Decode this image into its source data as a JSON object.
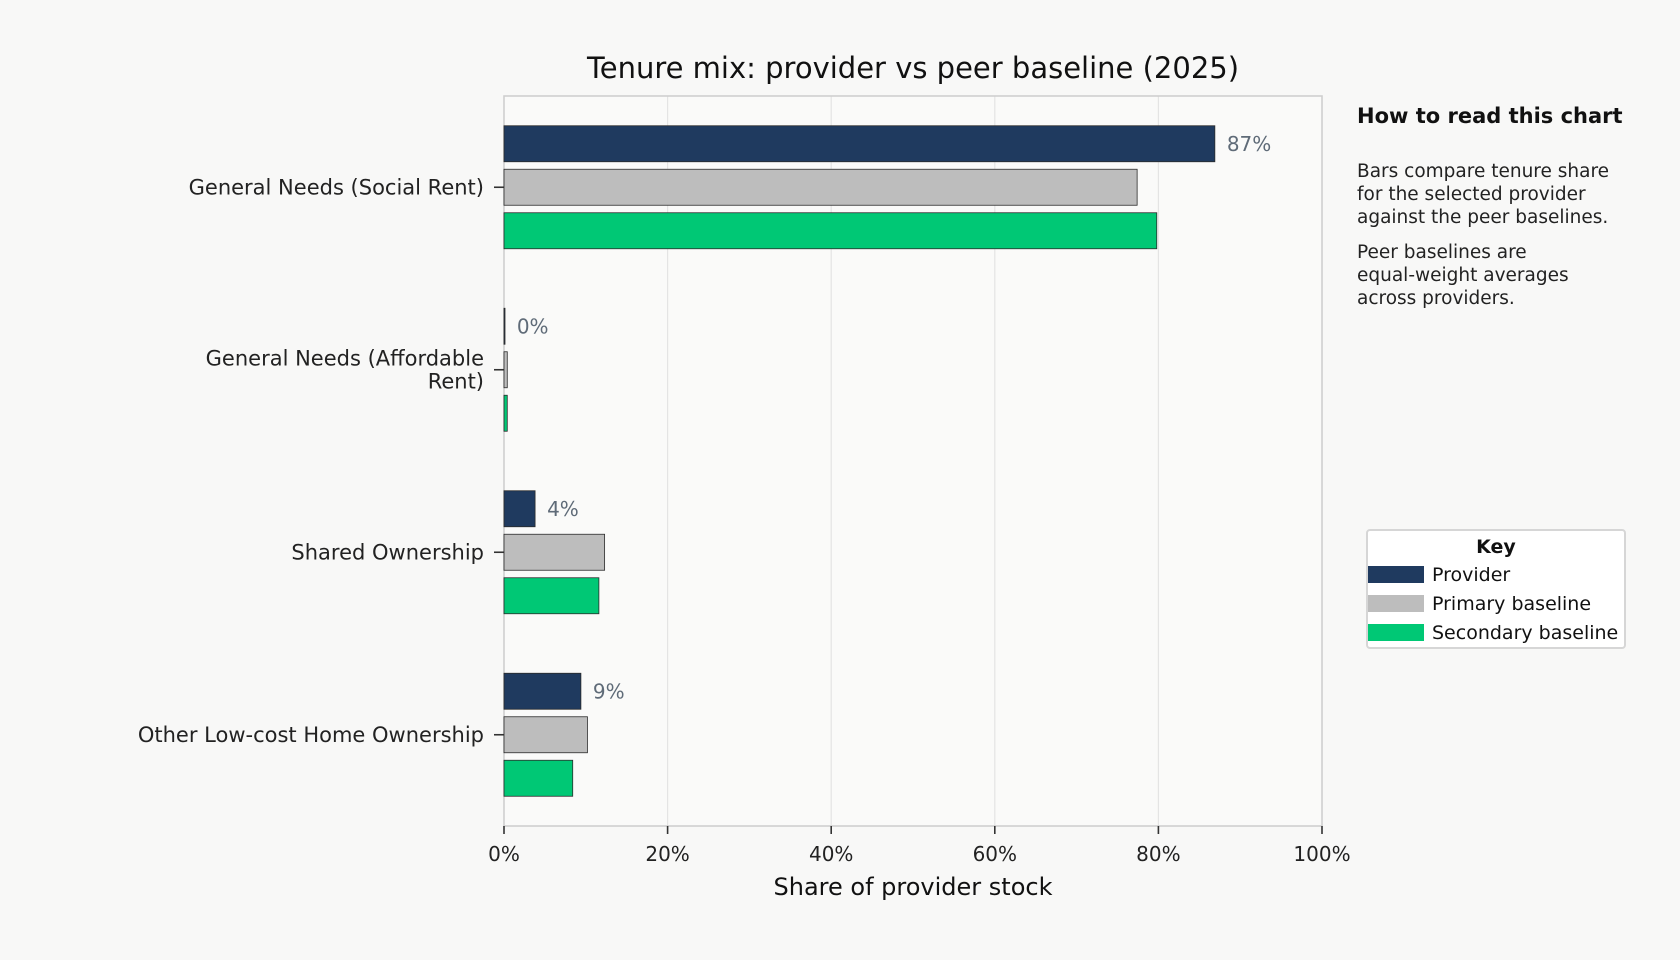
{
  "chart_data": {
    "type": "bar",
    "orientation": "horizontal",
    "title": "Tenure mix: provider vs peer baseline (2025)",
    "xlabel": "Share of provider stock",
    "ylabel": "",
    "xlim": [
      0,
      100
    ],
    "x_ticks": [
      0,
      20,
      40,
      60,
      80,
      100
    ],
    "x_tick_labels": [
      "0%",
      "20%",
      "40%",
      "60%",
      "80%",
      "100%"
    ],
    "grid": "vertical",
    "categories": [
      "General Needs (Social Rent)",
      "General Needs (Affordable Rent)",
      "Shared Ownership",
      "Other Low-cost Home Ownership"
    ],
    "category_label_lines": [
      [
        "General Needs (Social Rent)"
      ],
      [
        "General Needs (Affordable",
        "Rent)"
      ],
      [
        "Shared Ownership"
      ],
      [
        "Other Low-cost Home Ownership"
      ]
    ],
    "series": [
      {
        "name": "Provider",
        "color": "#1f3a5f",
        "values": [
          86.9,
          0.1,
          3.8,
          9.4
        ],
        "labels": [
          "87%",
          "0%",
          "4%",
          "9%"
        ]
      },
      {
        "name": "Primary baseline",
        "color": "#bdbdbd",
        "values": [
          77.4,
          0.4,
          12.3,
          10.2
        ]
      },
      {
        "name": "Secondary baseline",
        "color": "#00c875",
        "values": [
          79.8,
          0.4,
          11.6,
          8.4
        ]
      }
    ],
    "legend": {
      "title": "Key",
      "position": "right"
    }
  },
  "side_panel": {
    "title": "How to read this chart",
    "paragraph_1": "Bars compare tenure share\nfor the selected provider\nagainst the peer baselines.",
    "paragraph_2": "Peer baselines are\nequal-weight averages\nacross providers."
  }
}
